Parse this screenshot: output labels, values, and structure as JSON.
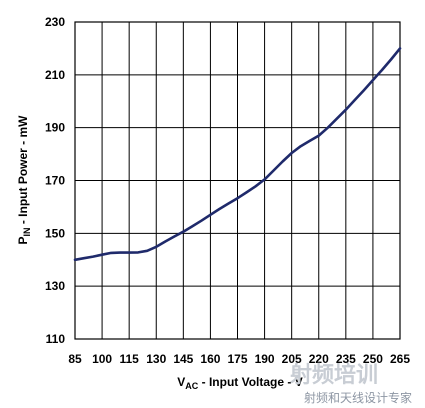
{
  "chart_data": {
    "type": "line",
    "x_ticks": [
      85,
      100,
      115,
      130,
      145,
      160,
      175,
      190,
      205,
      220,
      235,
      250,
      265
    ],
    "y_ticks": [
      110,
      130,
      150,
      170,
      190,
      210,
      230
    ],
    "xlim": [
      85,
      265
    ],
    "ylim": [
      110,
      230
    ],
    "grid": true,
    "xlabel": {
      "main": "V",
      "sub": "AC",
      "rest": " - Input Voltage - V"
    },
    "ylabel": {
      "main": "P",
      "sub": "IN",
      "rest": " - Input Power - mW"
    },
    "line_color": "#1f2a6b",
    "series": [
      {
        "x": [
          85,
          90,
          95,
          100,
          105,
          110,
          115,
          120,
          125,
          130,
          135,
          140,
          145,
          150,
          155,
          160,
          165,
          170,
          175,
          180,
          185,
          190,
          195,
          200,
          205,
          210,
          215,
          220,
          225,
          230,
          235,
          240,
          245,
          250,
          255,
          260,
          265
        ],
        "y": [
          140,
          140.6,
          141.2,
          141.9,
          142.6,
          142.7,
          142.7,
          142.8,
          143.4,
          144.9,
          146.9,
          148.8,
          150.6,
          152.7,
          154.8,
          157.0,
          159.2,
          161.3,
          163.3,
          165.5,
          167.8,
          170.4,
          173.8,
          177.2,
          180.4,
          183.0,
          185.0,
          187.0,
          190.0,
          193.4,
          196.8,
          200.5,
          204.2,
          208.0,
          211.8,
          215.8,
          220.0
        ]
      }
    ]
  },
  "watermark": {
    "logo_text": "射频培训",
    "tagline": "射频和天线设计专家"
  }
}
